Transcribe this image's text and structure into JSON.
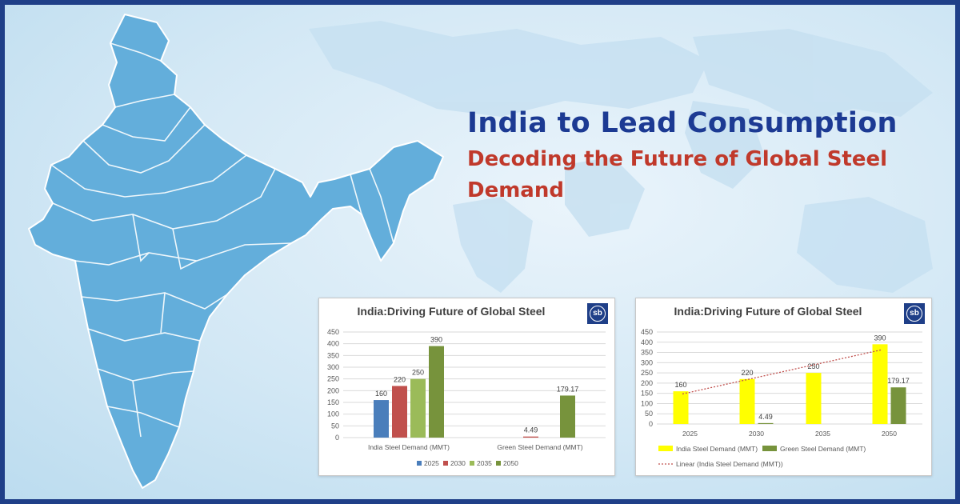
{
  "headline": {
    "title": "India to Lead Consumption",
    "subtitle": "Decoding the Future of Global Steel Demand"
  },
  "colors": {
    "frame": "#1f3f88",
    "title": "#1c3a93",
    "subtitle": "#c0392b",
    "map_fill": "#63aedb",
    "y2025": "#4a7ebb",
    "y2030": "#c0504d",
    "y2035": "#9bbb59",
    "y2050": "#77933c",
    "india": "#ffff00",
    "green": "#77933c",
    "trend": "#c0504d"
  },
  "badge_text": "sb",
  "chart_data": [
    {
      "type": "bar",
      "title": "India:Driving Future of Global Steel",
      "categories": [
        "India Steel Demand (MMT)",
        "Green Steel Demand (MMT)"
      ],
      "series": [
        {
          "name": "2025",
          "values": [
            160,
            null
          ],
          "labels": [
            "160",
            ""
          ]
        },
        {
          "name": "2030",
          "values": [
            220,
            4.49
          ],
          "labels": [
            "220",
            "4.49"
          ]
        },
        {
          "name": "2035",
          "values": [
            250,
            null
          ],
          "labels": [
            "250",
            ""
          ]
        },
        {
          "name": "2050",
          "values": [
            390,
            179.17
          ],
          "labels": [
            "390",
            "179.17"
          ]
        }
      ],
      "ylim": [
        0,
        450
      ],
      "yticks": [
        "0",
        "50",
        "100",
        "150",
        "200",
        "250",
        "300",
        "350",
        "400",
        "450"
      ],
      "grid": true,
      "legend": "bottom"
    },
    {
      "type": "bar",
      "title": "India:Driving Future of Global Steel",
      "categories": [
        "2025",
        "2030",
        "2035",
        "2050"
      ],
      "series": [
        {
          "name": "India Steel Demand (MMT)",
          "values": [
            160,
            220,
            250,
            390
          ],
          "labels": [
            "160",
            "220",
            "250",
            "390"
          ]
        },
        {
          "name": "Green Steel Demand (MMT)",
          "values": [
            null,
            4.49,
            null,
            179.17
          ],
          "labels": [
            "",
            "4.49",
            "",
            "179.17"
          ]
        }
      ],
      "trendline": {
        "name": "Linear (India Steel Demand (MMT))",
        "of": "India Steel Demand (MMT)"
      },
      "ylim": [
        0,
        450
      ],
      "yticks": [
        "0",
        "50",
        "100",
        "150",
        "200",
        "250",
        "300",
        "350",
        "400",
        "450"
      ],
      "grid": true,
      "legend": "bottom"
    }
  ]
}
